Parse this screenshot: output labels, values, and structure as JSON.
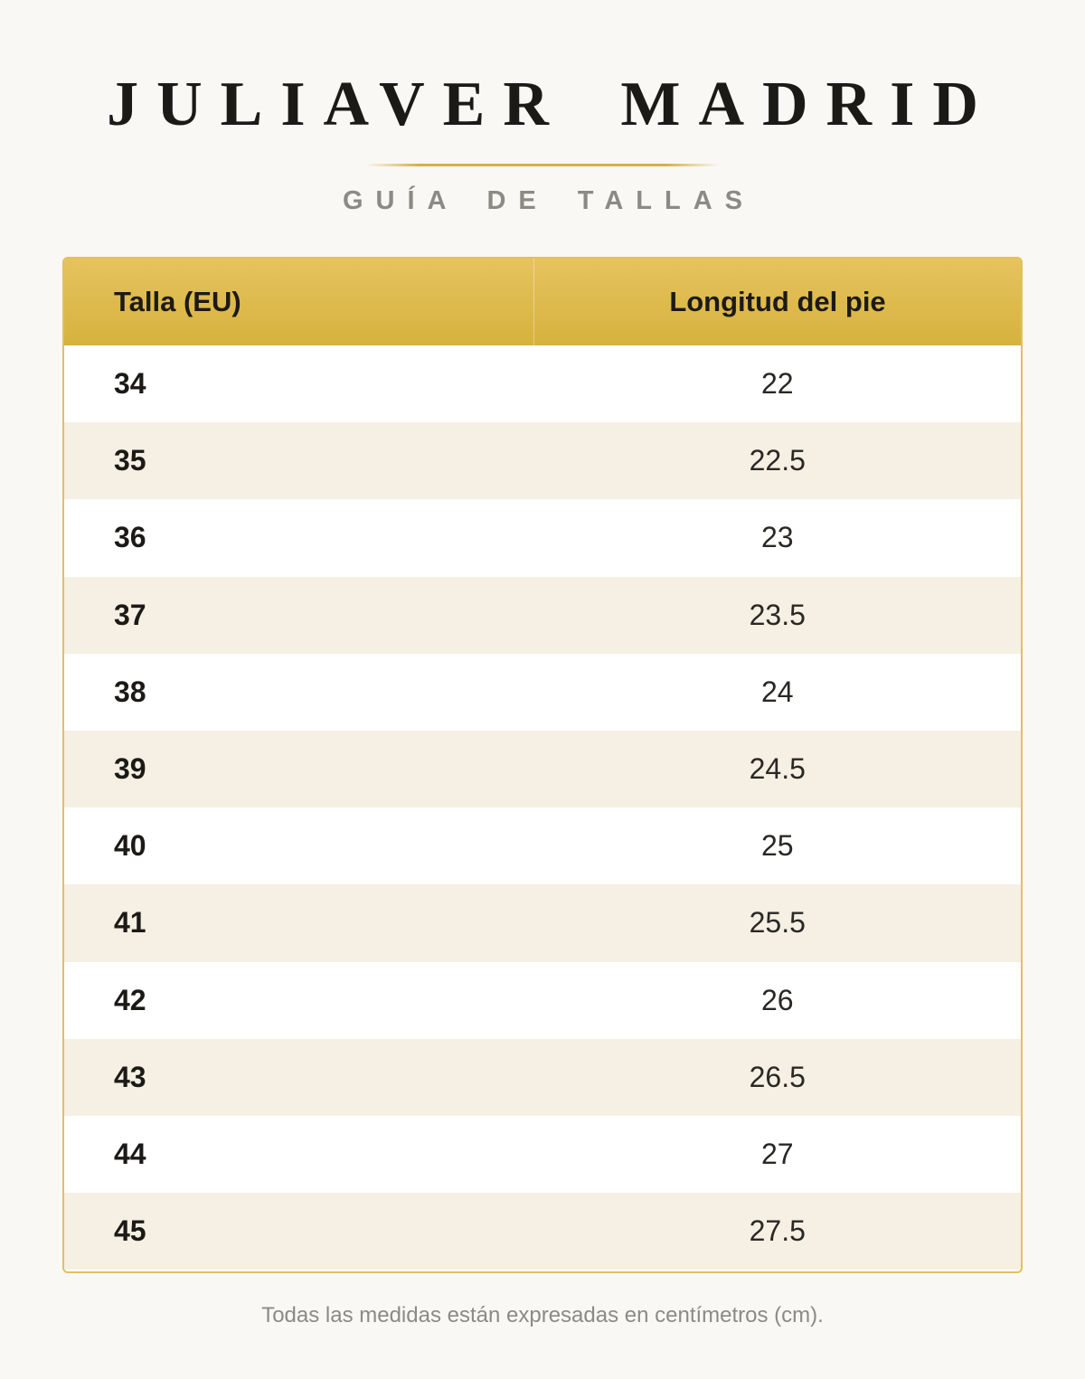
{
  "header": {
    "brand": "JULIAVER MADRID",
    "subtitle": "GUÍA DE TALLAS"
  },
  "table": {
    "columns": [
      "Talla (EU)",
      "Longitud del pie"
    ],
    "rows": [
      {
        "size": "34",
        "length": "22"
      },
      {
        "size": "35",
        "length": "22.5"
      },
      {
        "size": "36",
        "length": "23"
      },
      {
        "size": "37",
        "length": "23.5"
      },
      {
        "size": "38",
        "length": "24"
      },
      {
        "size": "39",
        "length": "24.5"
      },
      {
        "size": "40",
        "length": "25"
      },
      {
        "size": "41",
        "length": "25.5"
      },
      {
        "size": "42",
        "length": "26"
      },
      {
        "size": "43",
        "length": "26.5"
      },
      {
        "size": "44",
        "length": "27"
      },
      {
        "size": "45",
        "length": "27.5"
      }
    ]
  },
  "footer": {
    "note": "Todas las medidas están expresadas en centímetros (cm)."
  },
  "colors": {
    "accent": "#d6b23d",
    "row_alt": "#f6efe3",
    "background": "#faf8f4"
  }
}
